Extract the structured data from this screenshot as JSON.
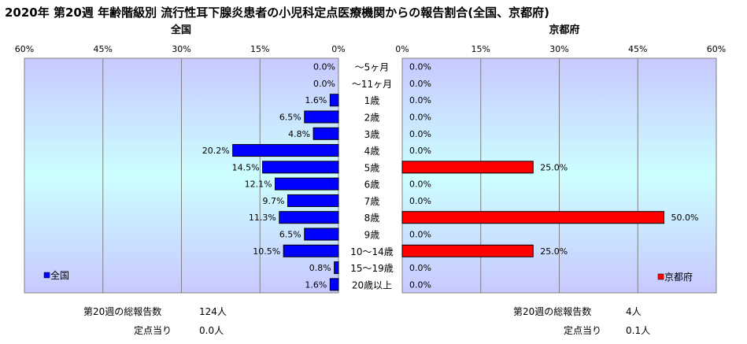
{
  "chart_data": [
    {
      "type": "bar",
      "title": "2020年 第20週 年齢階級別 流行性耳下腺炎患者の小児科定点医療機関からの報告割合(全国、京都府)",
      "subtitle": "全国",
      "orientation": "horizontal-left",
      "categories": [
        "〜5ヶ月",
        "〜11ヶ月",
        "1歳",
        "2歳",
        "3歳",
        "4歳",
        "5歳",
        "6歳",
        "7歳",
        "8歳",
        "9歳",
        "10〜14歳",
        "15〜19歳",
        "20歳以上"
      ],
      "series": [
        {
          "name": "全国",
          "color": "#0000ff",
          "values": [
            0.0,
            0.0,
            1.6,
            6.5,
            4.8,
            20.2,
            14.5,
            12.1,
            9.7,
            11.3,
            6.5,
            10.5,
            0.8,
            1.6
          ],
          "value_labels": [
            "0.0%",
            "0.0%",
            "1.6%",
            "6.5%",
            "4.8%",
            "20.2%",
            "14.5%",
            "12.1%",
            "9.7%",
            "11.3%",
            "6.5%",
            "10.5%",
            "0.8%",
            "1.6%"
          ]
        }
      ],
      "xlim": [
        0,
        60
      ],
      "tick_labels": [
        "60%",
        "45%",
        "30%",
        "15%",
        "0%"
      ],
      "legend": "bottom-left",
      "grid": true
    },
    {
      "type": "bar",
      "title": "京都府",
      "orientation": "horizontal-right",
      "categories": [
        "〜5ヶ月",
        "〜11ヶ月",
        "1歳",
        "2歳",
        "3歳",
        "4歳",
        "5歳",
        "6歳",
        "7歳",
        "8歳",
        "9歳",
        "10〜14歳",
        "15〜19歳",
        "20歳以上"
      ],
      "series": [
        {
          "name": "京都府",
          "color": "#ff0000",
          "values": [
            0.0,
            0.0,
            0.0,
            0.0,
            0.0,
            0.0,
            25.0,
            0.0,
            0.0,
            50.0,
            0.0,
            25.0,
            0.0,
            0.0
          ],
          "value_labels": [
            "0.0%",
            "0.0%",
            "0.0%",
            "0.0%",
            "0.0%",
            "0.0%",
            "25.0%",
            "0.0%",
            "0.0%",
            "50.0%",
            "0.0%",
            "25.0%",
            "0.0%",
            "0.0%"
          ]
        }
      ],
      "xlim": [
        0,
        60
      ],
      "tick_labels": [
        "0%",
        "15%",
        "30%",
        "45%",
        "60%"
      ],
      "legend": "bottom-right",
      "grid": true
    }
  ],
  "footer": {
    "national_total_label": "第20週の総報告数",
    "national_total_value": "124人",
    "national_per_label": "定点当り",
    "national_per_value": "0.0人",
    "kyoto_total_label": "第20週の総報告数",
    "kyoto_total_value": "4人",
    "kyoto_per_label": "定点当り",
    "kyoto_per_value": "0.1人"
  }
}
